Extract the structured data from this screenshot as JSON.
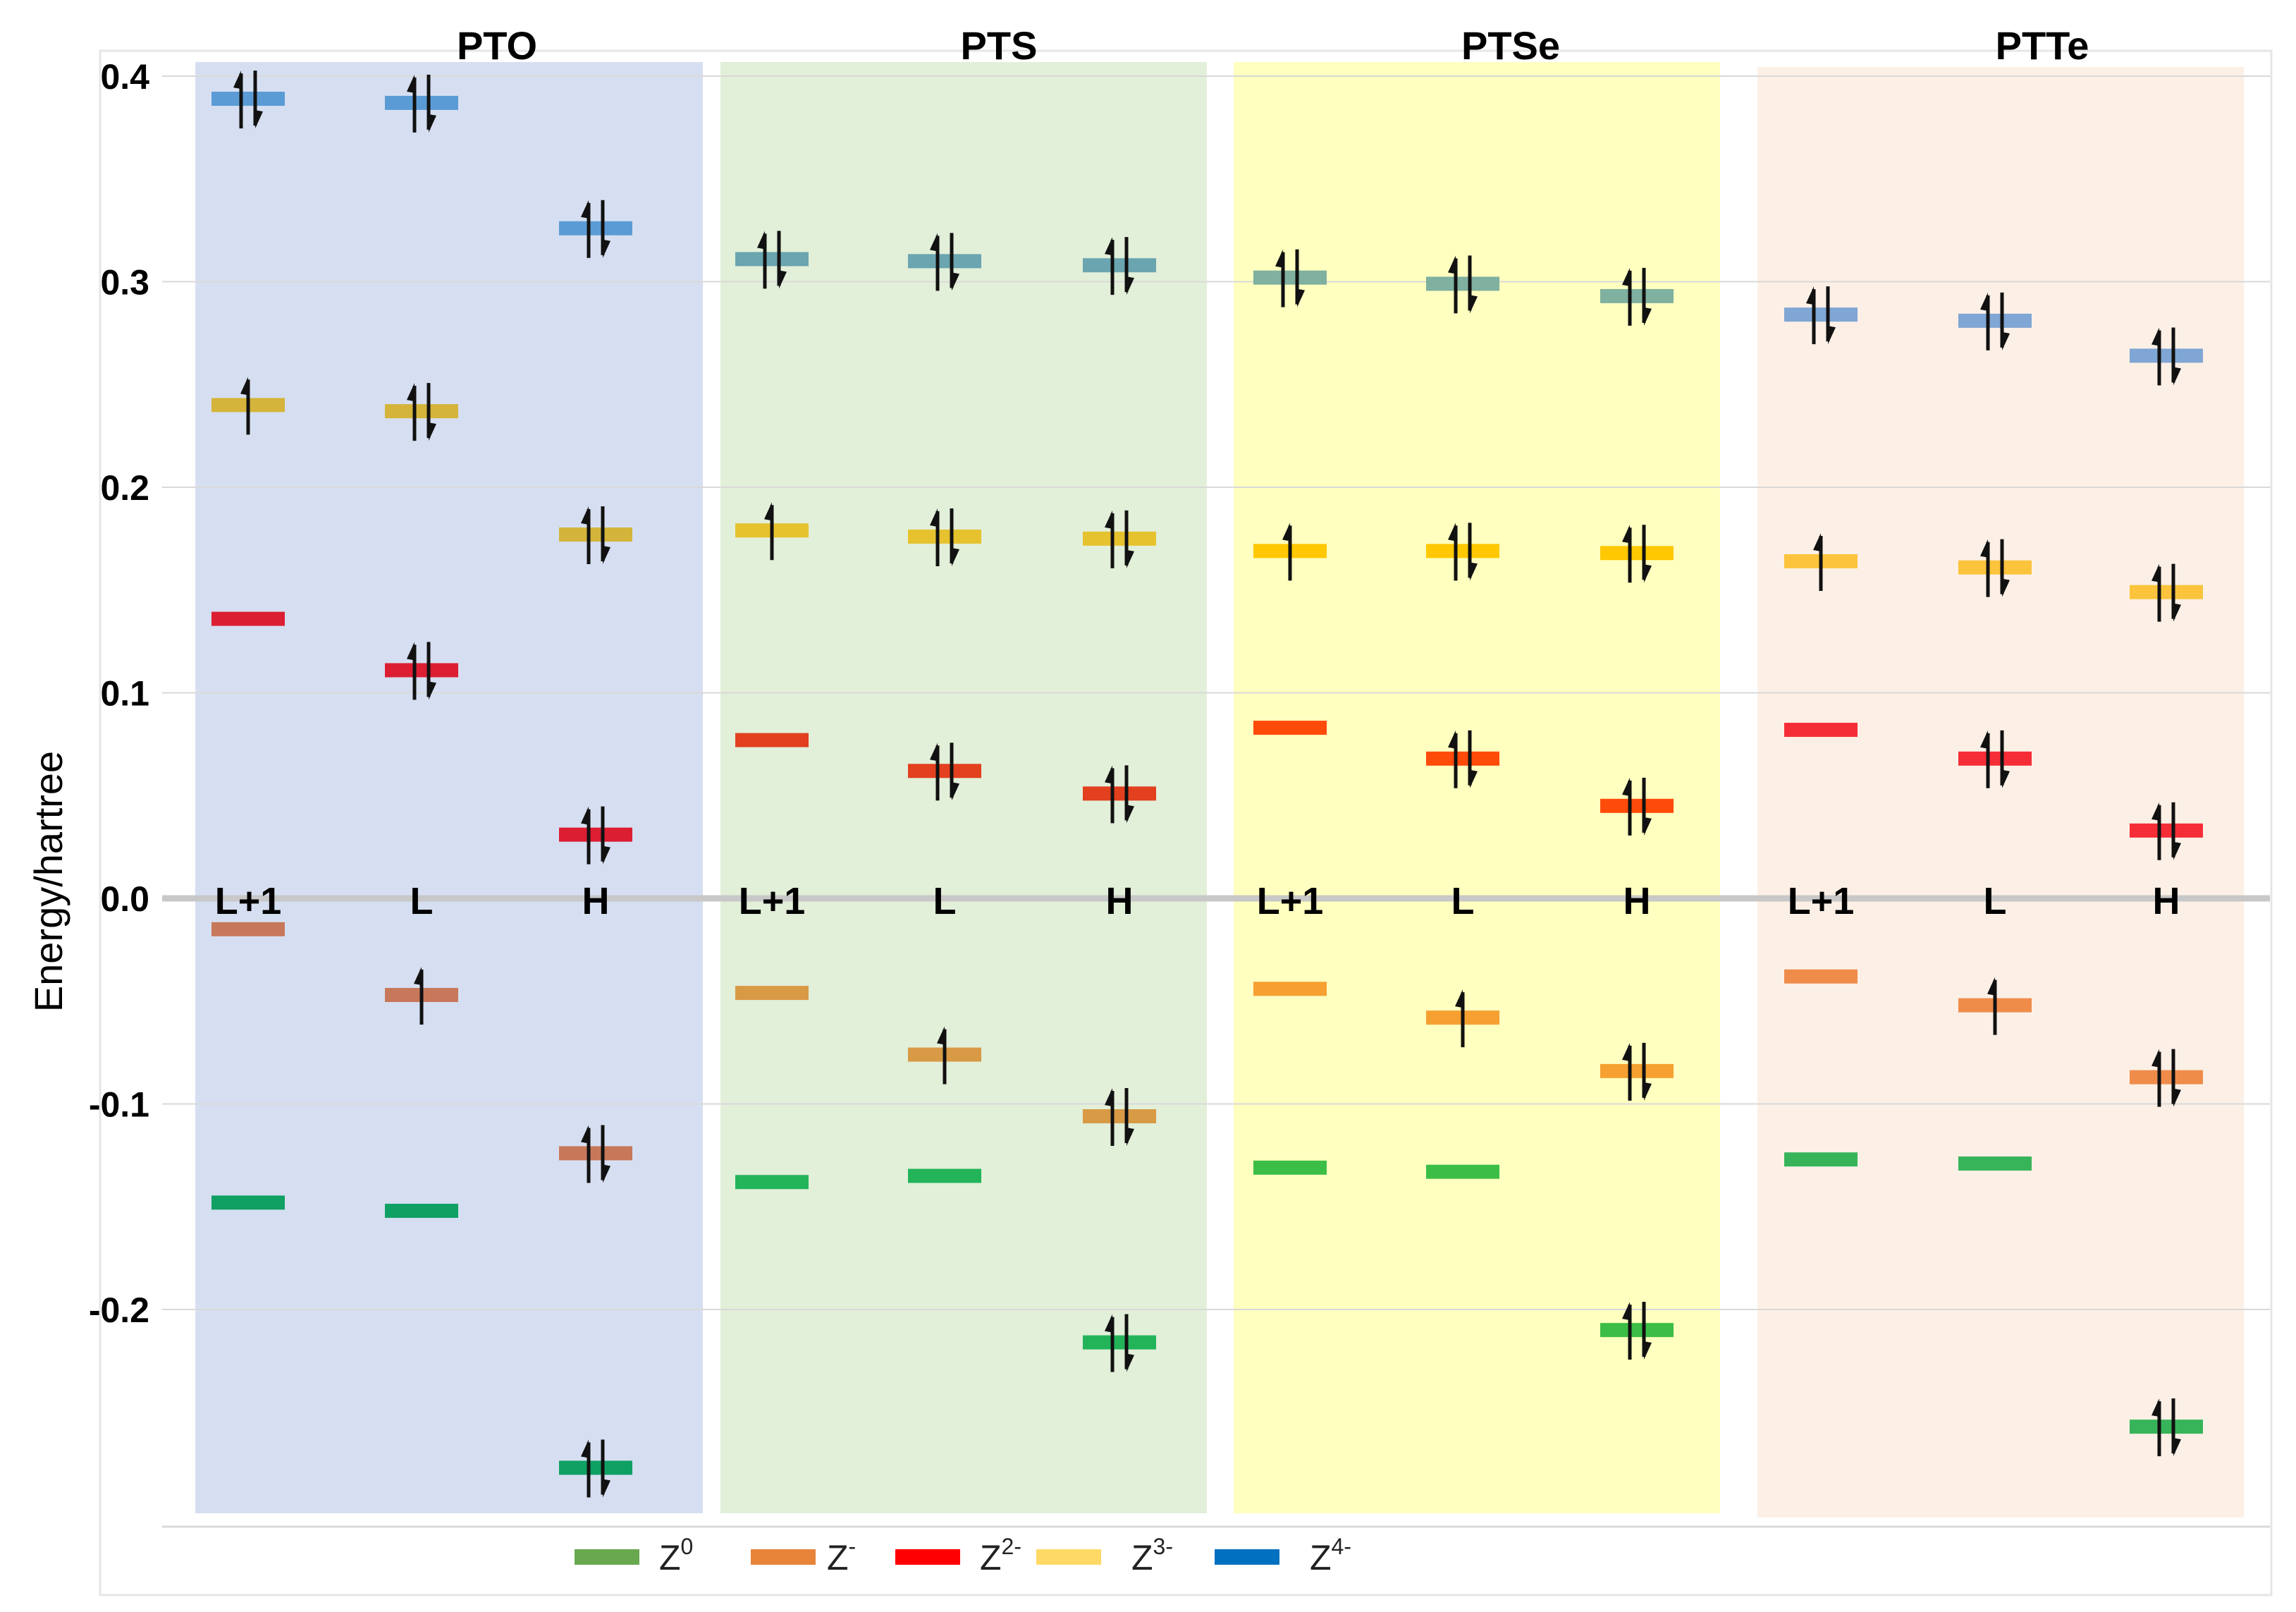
{
  "colors": {
    "Z0": "#6aa84f",
    "Z-": "#e8833a",
    "Z2-": "#ff0000",
    "Z3-": "#ffd966",
    "Z4-": "#0070c0",
    "grid": "#d9d9d9",
    "zeroline": "#c8c8c8"
  },
  "chart_data": {
    "type": "scatter",
    "title": "",
    "xlabel": "",
    "ylabel": "Energy/hartree",
    "ylim": [
      -0.3,
      0.4
    ],
    "y_ticks": [
      {
        "value": 0.4,
        "label": "0.4"
      },
      {
        "value": 0.3,
        "label": "0.3"
      },
      {
        "value": 0.2,
        "label": "0.2"
      },
      {
        "value": 0.1,
        "label": "0.1"
      },
      {
        "value": 0.0,
        "label": "0.0"
      },
      {
        "value": -0.1,
        "label": "-0.1"
      },
      {
        "value": -0.2,
        "label": "-0.2"
      }
    ],
    "legend": [
      {
        "key": "Z0",
        "base": "Z",
        "sup": "0"
      },
      {
        "key": "Z-",
        "base": "Z",
        "sup": "-"
      },
      {
        "key": "Z2-",
        "base": "Z",
        "sup": "2-"
      },
      {
        "key": "Z3-",
        "base": "Z",
        "sup": "3-"
      },
      {
        "key": "Z4-",
        "base": "Z",
        "sup": "4-"
      }
    ],
    "orbital_labels": [
      "L+1",
      "L",
      "H"
    ],
    "panels": [
      {
        "name": "PTO",
        "background": "#d6dff1",
        "levels": {
          "L+1": [
            {
              "state": "Z4-",
              "energy": 0.389,
              "electrons": 2,
              "color": "#5b9bd5"
            },
            {
              "state": "Z3-",
              "energy": 0.24,
              "electrons": 1,
              "color": "#d4b43a"
            },
            {
              "state": "Z2-",
              "energy": 0.136,
              "electrons": 0,
              "color": "#dc1e32"
            },
            {
              "state": "Z-",
              "energy": -0.015,
              "electrons": 0,
              "color": "#c8785a"
            },
            {
              "state": "Z0",
              "energy": -0.148,
              "electrons": 0,
              "color": "#0fa064"
            }
          ],
          "L": [
            {
              "state": "Z4-",
              "energy": 0.387,
              "electrons": 2,
              "color": "#5b9bd5"
            },
            {
              "state": "Z3-",
              "energy": 0.237,
              "electrons": 2,
              "color": "#d4b43a"
            },
            {
              "state": "Z2-",
              "energy": 0.111,
              "electrons": 2,
              "color": "#dc1e32"
            },
            {
              "state": "Z-",
              "energy": -0.047,
              "electrons": 1,
              "color": "#c8785a"
            },
            {
              "state": "Z0",
              "energy": -0.152,
              "electrons": 0,
              "color": "#0fa064"
            }
          ],
          "H": [
            {
              "state": "Z4-",
              "energy": 0.326,
              "electrons": 2,
              "color": "#5b9bd5"
            },
            {
              "state": "Z3-",
              "energy": 0.177,
              "electrons": 2,
              "color": "#d4b43a"
            },
            {
              "state": "Z2-",
              "energy": 0.031,
              "electrons": 2,
              "color": "#dc1e32"
            },
            {
              "state": "Z-",
              "energy": -0.124,
              "electrons": 2,
              "color": "#c8785a"
            },
            {
              "state": "Z0",
              "energy": -0.277,
              "electrons": 2,
              "color": "#0fa064"
            }
          ]
        }
      },
      {
        "name": "PTS",
        "background": "#e2efd9",
        "levels": {
          "L+1": [
            {
              "state": "Z4-",
              "energy": 0.311,
              "electrons": 2,
              "color": "#6aa5b0"
            },
            {
              "state": "Z3-",
              "energy": 0.179,
              "electrons": 1,
              "color": "#e6c22e"
            },
            {
              "state": "Z2-",
              "energy": 0.077,
              "electrons": 0,
              "color": "#e2401e"
            },
            {
              "state": "Z-",
              "energy": -0.046,
              "electrons": 0,
              "color": "#d99a46"
            },
            {
              "state": "Z0",
              "energy": -0.138,
              "electrons": 0,
              "color": "#23b45a"
            }
          ],
          "L": [
            {
              "state": "Z4-",
              "energy": 0.31,
              "electrons": 2,
              "color": "#6aa5b0"
            },
            {
              "state": "Z3-",
              "energy": 0.176,
              "electrons": 2,
              "color": "#e6c22e"
            },
            {
              "state": "Z2-",
              "energy": 0.062,
              "electrons": 2,
              "color": "#e2401e"
            },
            {
              "state": "Z-",
              "energy": -0.076,
              "electrons": 1,
              "color": "#d99a46"
            },
            {
              "state": "Z0",
              "energy": -0.135,
              "electrons": 0,
              "color": "#23b45a"
            }
          ],
          "H": [
            {
              "state": "Z4-",
              "energy": 0.308,
              "electrons": 2,
              "color": "#6aa5b0"
            },
            {
              "state": "Z3-",
              "energy": 0.175,
              "electrons": 2,
              "color": "#e6c22e"
            },
            {
              "state": "Z2-",
              "energy": 0.051,
              "electrons": 2,
              "color": "#e2401e"
            },
            {
              "state": "Z-",
              "energy": -0.106,
              "electrons": 2,
              "color": "#d99a46"
            },
            {
              "state": "Z0",
              "energy": -0.216,
              "electrons": 2,
              "color": "#23b45a"
            }
          ]
        }
      },
      {
        "name": "PTSe",
        "background": "#ffffc0",
        "levels": {
          "L+1": [
            {
              "state": "Z4-",
              "energy": 0.302,
              "electrons": 2,
              "color": "#7fb0a0"
            },
            {
              "state": "Z3-",
              "energy": 0.169,
              "electrons": 1,
              "color": "#ffc800"
            },
            {
              "state": "Z2-",
              "energy": 0.083,
              "electrons": 0,
              "color": "#ff4b0a"
            },
            {
              "state": "Z-",
              "energy": -0.044,
              "electrons": 0,
              "color": "#f5a030"
            },
            {
              "state": "Z0",
              "energy": -0.131,
              "electrons": 0,
              "color": "#3cbe46"
            }
          ],
          "L": [
            {
              "state": "Z4-",
              "energy": 0.299,
              "electrons": 2,
              "color": "#7fb0a0"
            },
            {
              "state": "Z3-",
              "energy": 0.169,
              "electrons": 2,
              "color": "#ffc800"
            },
            {
              "state": "Z2-",
              "energy": 0.068,
              "electrons": 2,
              "color": "#ff4b0a"
            },
            {
              "state": "Z-",
              "energy": -0.058,
              "electrons": 1,
              "color": "#f5a030"
            },
            {
              "state": "Z0",
              "energy": -0.133,
              "electrons": 0,
              "color": "#3cbe46"
            }
          ],
          "H": [
            {
              "state": "Z4-",
              "energy": 0.293,
              "electrons": 2,
              "color": "#7fb0a0"
            },
            {
              "state": "Z3-",
              "energy": 0.168,
              "electrons": 2,
              "color": "#ffc800"
            },
            {
              "state": "Z2-",
              "energy": 0.045,
              "electrons": 2,
              "color": "#ff4b0a"
            },
            {
              "state": "Z-",
              "energy": -0.084,
              "electrons": 2,
              "color": "#f5a030"
            },
            {
              "state": "Z0",
              "energy": -0.21,
              "electrons": 2,
              "color": "#3cbe46"
            }
          ]
        }
      },
      {
        "name": "PTTe",
        "background": "#fcf0e6",
        "levels": {
          "L+1": [
            {
              "state": "Z4-",
              "energy": 0.284,
              "electrons": 2,
              "color": "#7fa6d4"
            },
            {
              "state": "Z3-",
              "energy": 0.164,
              "electrons": 1,
              "color": "#fbc43c"
            },
            {
              "state": "Z2-",
              "energy": 0.082,
              "electrons": 0,
              "color": "#f52d37"
            },
            {
              "state": "Z-",
              "energy": -0.038,
              "electrons": 0,
              "color": "#ef8c4a"
            },
            {
              "state": "Z0",
              "energy": -0.127,
              "electrons": 0,
              "color": "#37b45a"
            }
          ],
          "L": [
            {
              "state": "Z4-",
              "energy": 0.281,
              "electrons": 2,
              "color": "#7fa6d4"
            },
            {
              "state": "Z3-",
              "energy": 0.161,
              "electrons": 2,
              "color": "#fbc43c"
            },
            {
              "state": "Z2-",
              "energy": 0.068,
              "electrons": 2,
              "color": "#f52d37"
            },
            {
              "state": "Z-",
              "energy": -0.052,
              "electrons": 1,
              "color": "#ef8c4a"
            },
            {
              "state": "Z0",
              "energy": -0.129,
              "electrons": 0,
              "color": "#37b45a"
            }
          ],
          "H": [
            {
              "state": "Z4-",
              "energy": 0.264,
              "electrons": 2,
              "color": "#7fa6d4"
            },
            {
              "state": "Z3-",
              "energy": 0.149,
              "electrons": 2,
              "color": "#fbc43c"
            },
            {
              "state": "Z2-",
              "energy": 0.033,
              "electrons": 2,
              "color": "#f52d37"
            },
            {
              "state": "Z-",
              "energy": -0.087,
              "electrons": 2,
              "color": "#ef8c4a"
            },
            {
              "state": "Z0",
              "energy": -0.257,
              "electrons": 2,
              "color": "#37b45a"
            }
          ]
        }
      }
    ]
  }
}
